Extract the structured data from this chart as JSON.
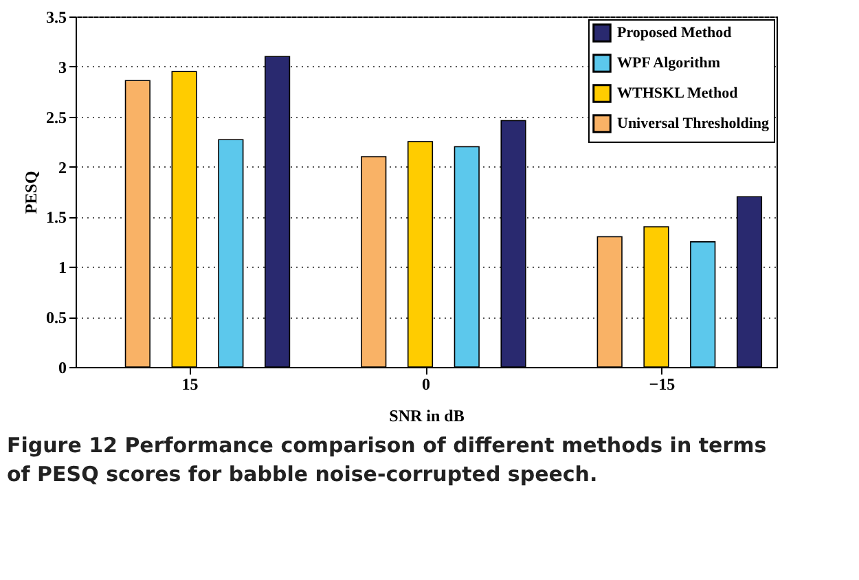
{
  "chart_data": {
    "type": "bar",
    "xlabel": "SNR in dB",
    "ylabel": "PESQ",
    "categories": [
      "15",
      "0",
      "−15"
    ],
    "series": [
      {
        "name": "Universal Thresholding",
        "color": "#f9b266",
        "values": [
          2.86,
          2.1,
          1.3
        ]
      },
      {
        "name": "WTHSKL Method",
        "color": "#ffcc00",
        "values": [
          2.95,
          2.25,
          1.4
        ]
      },
      {
        "name": "WPF Algorithm",
        "color": "#5cc8ec",
        "values": [
          2.27,
          2.2,
          1.25
        ]
      },
      {
        "name": "Proposed Method",
        "color": "#29296f",
        "values": [
          3.1,
          2.46,
          1.7
        ]
      }
    ],
    "ylim": [
      0,
      3.5
    ],
    "yticks": [
      0,
      0.5,
      1,
      1.5,
      2,
      2.5,
      3,
      3.5
    ],
    "grid": "y",
    "legend": "top right",
    "annotations": [
      "Figure 12 Performance comparison of different methods in terms of PESQ scores for babble noise-corrupted speech."
    ]
  }
}
